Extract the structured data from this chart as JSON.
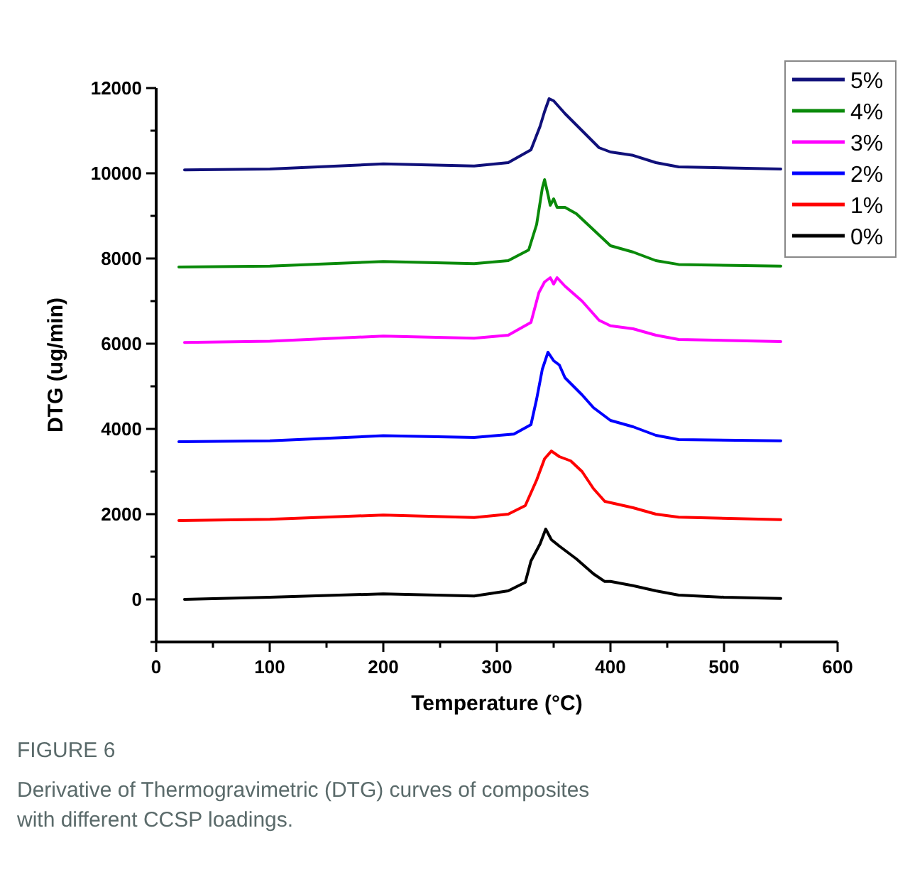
{
  "chart_data": {
    "type": "line",
    "xlabel": "Temperature (°C)",
    "ylabel": "DTG (ug/min)",
    "xlim": [
      0,
      600
    ],
    "ylim": [
      -1000,
      12000
    ],
    "xticks": [
      0,
      {
        "value": 50,
        "label": null
      },
      100,
      {
        "value": 150,
        "label": null
      },
      200,
      {
        "value": 250,
        "label": null
      },
      300,
      {
        "value": 350,
        "label": null
      },
      400,
      {
        "value": 450,
        "label": null
      },
      500,
      {
        "value": 550,
        "label": null
      },
      600
    ],
    "yticks": [
      {
        "value": -1000,
        "label": null
      },
      0,
      {
        "value": 1000,
        "label": null
      },
      2000,
      {
        "value": 3000,
        "label": null
      },
      4000,
      {
        "value": 5000,
        "label": null
      },
      6000,
      {
        "value": 7000,
        "label": null
      },
      8000,
      {
        "value": 9000,
        "label": null
      },
      10000,
      {
        "value": 11000,
        "label": null
      },
      12000
    ],
    "grid": false,
    "legend": "top right",
    "line_style": "solid",
    "marker": "none",
    "series": [
      {
        "name": "5%",
        "color": "#10107a",
        "x": [
          25,
          100,
          200,
          280,
          310,
          330,
          338,
          342,
          346,
          350,
          360,
          375,
          390,
          400,
          420,
          440,
          460,
          550
        ],
        "values": [
          10080,
          10100,
          10220,
          10170,
          10250,
          10550,
          11100,
          11450,
          11750,
          11700,
          11400,
          11000,
          10600,
          10500,
          10420,
          10250,
          10150,
          10100
        ]
      },
      {
        "name": "4%",
        "color": "#0a8a0a",
        "x": [
          20,
          100,
          200,
          280,
          310,
          328,
          335,
          340,
          342,
          345,
          347,
          350,
          353,
          360,
          370,
          380,
          400,
          420,
          440,
          460,
          550
        ],
        "values": [
          7800,
          7820,
          7930,
          7880,
          7950,
          8200,
          8800,
          9650,
          9850,
          9500,
          9250,
          9400,
          9200,
          9200,
          9050,
          8800,
          8300,
          8150,
          7950,
          7860,
          7820
        ]
      },
      {
        "name": "3%",
        "color": "#ff00ff",
        "x": [
          25,
          100,
          200,
          280,
          310,
          330,
          337,
          342,
          347,
          350,
          353,
          360,
          375,
          390,
          400,
          420,
          440,
          460,
          550
        ],
        "values": [
          6030,
          6060,
          6180,
          6130,
          6200,
          6500,
          7200,
          7450,
          7550,
          7400,
          7550,
          7350,
          7000,
          6550,
          6420,
          6350,
          6200,
          6100,
          6050
        ]
      },
      {
        "name": "2%",
        "color": "#0000ff",
        "x": [
          20,
          100,
          200,
          280,
          315,
          330,
          335,
          340,
          345,
          350,
          355,
          360,
          375,
          385,
          400,
          420,
          440,
          460,
          550
        ],
        "values": [
          3700,
          3720,
          3840,
          3800,
          3880,
          4100,
          4700,
          5400,
          5800,
          5600,
          5500,
          5200,
          4800,
          4500,
          4200,
          4050,
          3850,
          3750,
          3720
        ]
      },
      {
        "name": "1%",
        "color": "#ff0000",
        "x": [
          20,
          100,
          200,
          280,
          310,
          325,
          335,
          342,
          348,
          355,
          365,
          375,
          385,
          395,
          420,
          440,
          460,
          550
        ],
        "values": [
          1850,
          1880,
          1980,
          1920,
          2000,
          2200,
          2800,
          3300,
          3480,
          3350,
          3250,
          3000,
          2600,
          2300,
          2150,
          2000,
          1930,
          1870
        ]
      },
      {
        "name": "0%",
        "color": "#000000",
        "x": [
          25,
          100,
          200,
          280,
          310,
          325,
          330,
          338,
          343,
          348,
          355,
          370,
          385,
          395,
          400,
          420,
          440,
          460,
          500,
          550
        ],
        "values": [
          0,
          50,
          130,
          80,
          200,
          400,
          900,
          1300,
          1650,
          1400,
          1250,
          950,
          600,
          420,
          420,
          320,
          200,
          100,
          50,
          20
        ]
      }
    ],
    "annotations": [
      "FIGURE 6",
      "Derivative of Thermogravimetric (DTG) curves of composites with different CCSP loadings."
    ]
  }
}
